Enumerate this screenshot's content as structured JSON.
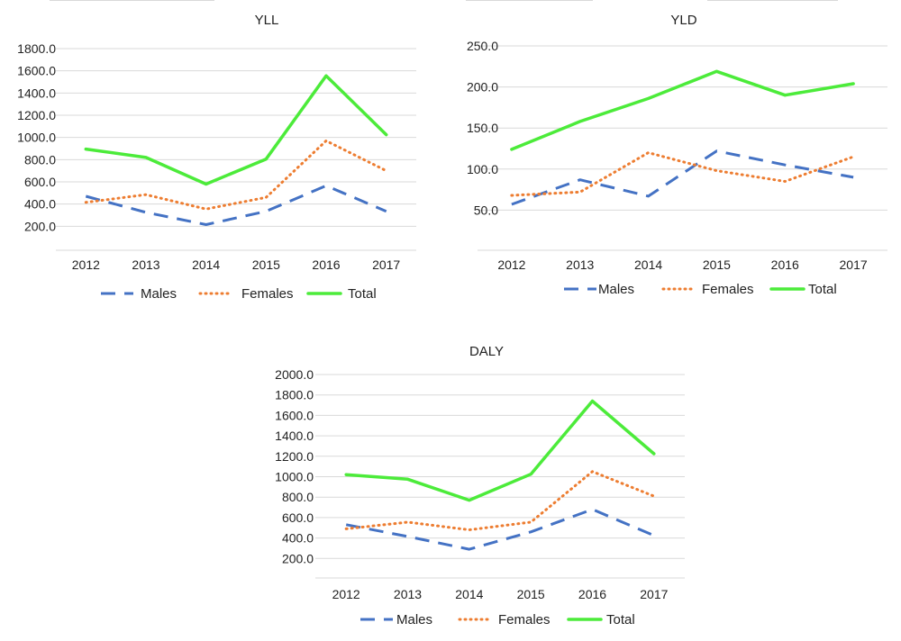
{
  "colors": {
    "males": "#4472C4",
    "females": "#ED7D31",
    "total": "#4CEB3A"
  },
  "chart_data": [
    {
      "type": "line",
      "title": "YLL",
      "categories": [
        "2012",
        "2013",
        "2014",
        "2015",
        "2016",
        "2017"
      ],
      "ylim": [
        0,
        1800
      ],
      "yticks": [
        "200.0",
        "400.0",
        "600.0",
        "800.0",
        "1000.0",
        "1200.0",
        "1400.0",
        "1600.0",
        "1800.0"
      ],
      "grid": true,
      "legend": "bottom",
      "series": [
        {
          "name": "Males",
          "values": [
            470,
            325,
            215,
            335,
            565,
            335
          ]
        },
        {
          "name": "Females",
          "values": [
            415,
            485,
            355,
            460,
            970,
            700
          ]
        },
        {
          "name": "Total",
          "values": [
            895,
            820,
            580,
            805,
            1555,
            1025
          ]
        }
      ]
    },
    {
      "type": "line",
      "title": "YLD",
      "categories": [
        "2012",
        "2013",
        "2014",
        "2015",
        "2016",
        "2017"
      ],
      "ylim": [
        0,
        250
      ],
      "yticks": [
        "50.0",
        "100.0",
        "150.0",
        "200.0",
        "250.0"
      ],
      "grid": true,
      "legend": "bottom",
      "series": [
        {
          "name": "Males",
          "values": [
            57,
            87,
            67,
            122,
            105,
            90
          ]
        },
        {
          "name": "Females",
          "values": [
            68,
            72,
            120,
            98,
            85,
            115
          ]
        },
        {
          "name": "Total",
          "values": [
            124,
            158,
            186,
            219,
            190,
            204
          ]
        }
      ]
    },
    {
      "type": "line",
      "title": "DALY",
      "categories": [
        "2012",
        "2013",
        "2014",
        "2015",
        "2016",
        "2017"
      ],
      "ylim": [
        0,
        2000
      ],
      "yticks": [
        "200.0",
        "400.0",
        "600.0",
        "800.0",
        "1000.0",
        "1200.0",
        "1400.0",
        "1600.0",
        "1800.0",
        "2000.0"
      ],
      "grid": true,
      "legend": "bottom",
      "series": [
        {
          "name": "Males",
          "values": [
            530,
            415,
            290,
            460,
            680,
            425
          ]
        },
        {
          "name": "Females",
          "values": [
            490,
            555,
            480,
            555,
            1050,
            810
          ]
        },
        {
          "name": "Total",
          "values": [
            1020,
            975,
            770,
            1025,
            1740,
            1225
          ]
        }
      ]
    }
  ]
}
